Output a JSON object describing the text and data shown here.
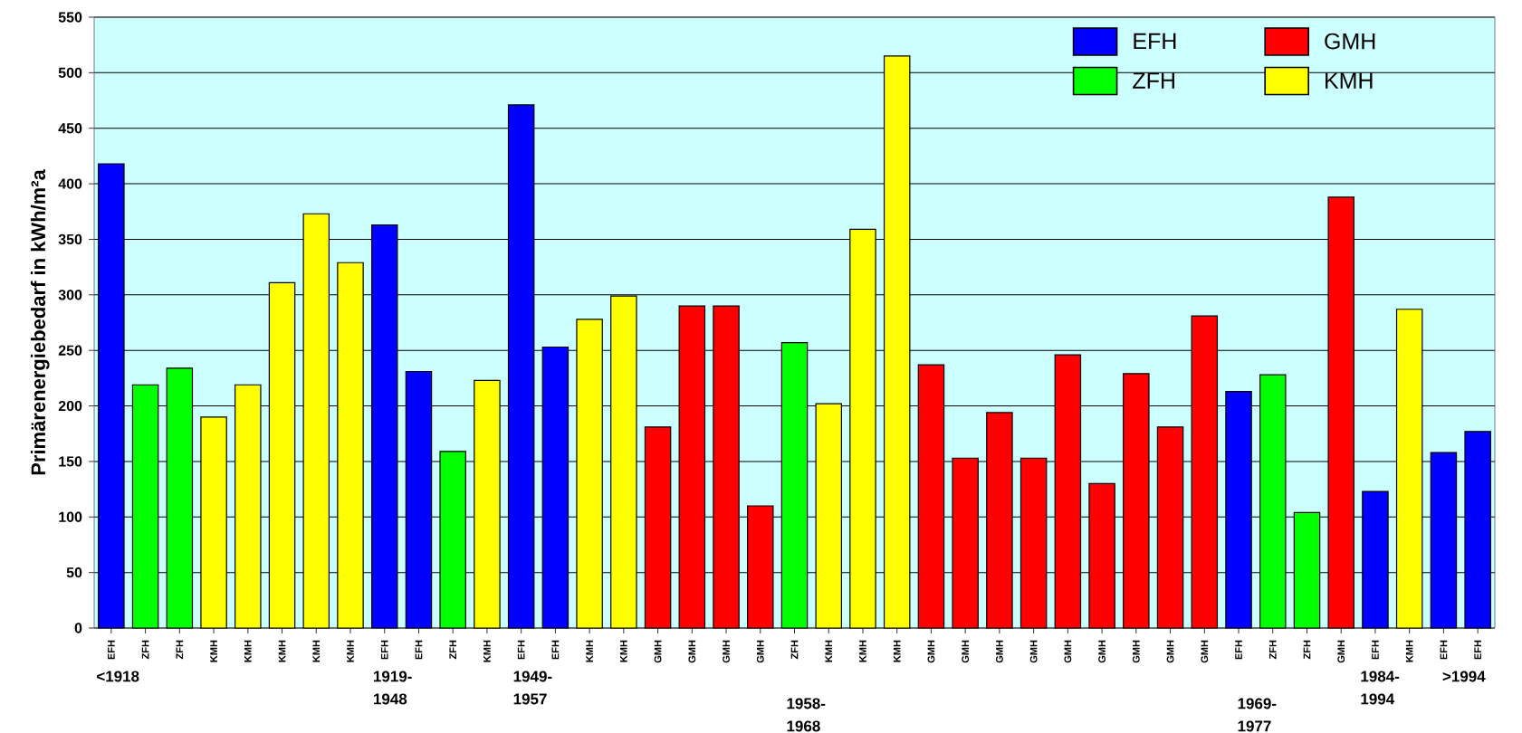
{
  "chart_data": {
    "type": "bar",
    "ylabel": "Primärenergiebedarf in kWh/m²a",
    "categories": [
      "EFH",
      "ZFH",
      "ZFH",
      "KMH",
      "KMH",
      "KMH",
      "KMH",
      "KMH",
      "EFH",
      "EFH",
      "ZFH",
      "KMH",
      "EFH",
      "EFH",
      "KMH",
      "KMH",
      "GMH",
      "GMH",
      "GMH",
      "GMH",
      "ZFH",
      "KMH",
      "KMH",
      "KMH",
      "GMH",
      "GMH",
      "GMH",
      "GMH",
      "GMH",
      "GMH",
      "GMH",
      "GMH",
      "GMH",
      "EFH",
      "ZFH",
      "ZFH",
      "GMH",
      "EFH",
      "KMH",
      "EFH",
      "EFH"
    ],
    "series": [
      {
        "name": "EFH",
        "color": "#0000ff",
        "values": [
          418,
          null,
          null,
          null,
          null,
          null,
          null,
          null,
          363,
          231,
          null,
          null,
          471,
          253,
          null,
          null,
          null,
          null,
          null,
          null,
          null,
          null,
          null,
          null,
          null,
          null,
          null,
          null,
          null,
          null,
          null,
          null,
          null,
          213,
          null,
          null,
          null,
          123,
          null,
          158,
          177
        ]
      },
      {
        "name": "GMH",
        "color": "#ff0000",
        "values": [
          null,
          null,
          null,
          null,
          null,
          null,
          null,
          null,
          null,
          null,
          null,
          null,
          null,
          null,
          null,
          null,
          181,
          290,
          290,
          110,
          null,
          null,
          null,
          null,
          237,
          153,
          194,
          153,
          246,
          130,
          229,
          181,
          281,
          null,
          null,
          null,
          388,
          null,
          null,
          null,
          null
        ]
      },
      {
        "name": "ZFH",
        "color": "#00ff00",
        "values": [
          null,
          219,
          234,
          null,
          null,
          null,
          null,
          null,
          null,
          null,
          159,
          null,
          null,
          null,
          null,
          null,
          null,
          null,
          null,
          null,
          257,
          null,
          null,
          null,
          null,
          null,
          null,
          null,
          null,
          null,
          null,
          null,
          null,
          null,
          228,
          104,
          null,
          null,
          null,
          null,
          null
        ]
      },
      {
        "name": "KMH",
        "color": "#ffff00",
        "values": [
          null,
          null,
          null,
          190,
          219,
          311,
          373,
          329,
          null,
          null,
          null,
          223,
          null,
          null,
          278,
          299,
          null,
          null,
          null,
          null,
          null,
          202,
          359,
          515,
          null,
          null,
          null,
          null,
          null,
          null,
          null,
          null,
          null,
          null,
          null,
          null,
          null,
          null,
          287,
          null,
          null
        ]
      }
    ],
    "ylim": [
      0,
      550
    ],
    "yticks": [
      0,
      50,
      100,
      150,
      200,
      250,
      300,
      350,
      400,
      450,
      500,
      550
    ],
    "grid": "y",
    "legend": "top right",
    "annotations": [
      "<1918",
      "1919-1948",
      "1949-1957",
      "1958-1968",
      "1969-1977",
      "1984-1994",
      ">1994"
    ]
  }
}
